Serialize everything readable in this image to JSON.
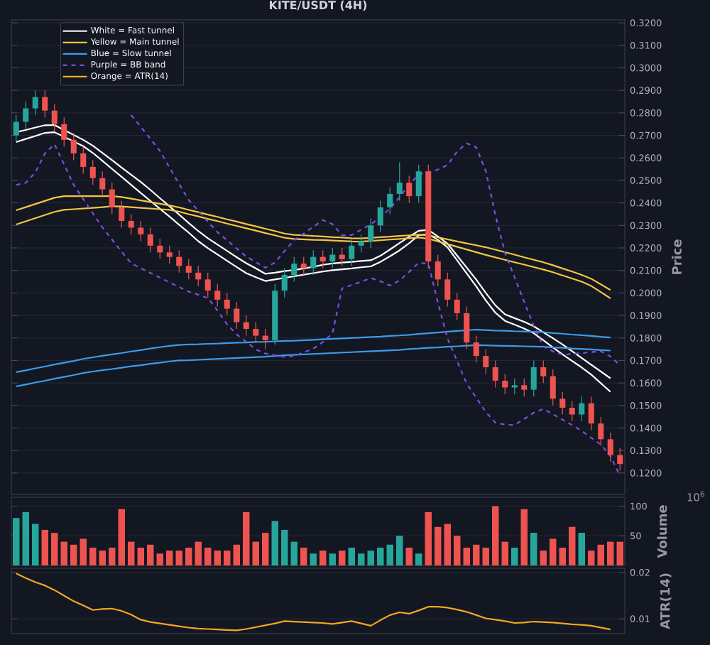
{
  "chart_data": [
    {
      "type": "candlestick",
      "title": "KITE/USDT (4H)",
      "ylabel": "Price",
      "grid": "y",
      "legend": "top left",
      "tick_labels": "y",
      "categories": [
        null,
        null,
        null,
        null,
        null,
        null,
        null,
        null,
        null,
        null,
        null,
        null,
        null,
        null,
        null,
        null,
        null,
        null,
        null,
        null,
        null,
        null,
        null,
        null,
        null,
        null,
        null,
        null,
        null,
        null,
        null,
        null,
        null,
        null,
        null,
        null,
        null,
        null,
        null,
        null,
        null,
        null,
        null,
        null,
        null,
        null,
        null,
        null,
        null,
        null,
        null,
        null,
        null,
        null,
        null,
        null,
        null,
        null,
        null,
        null,
        null,
        null,
        null,
        null
      ],
      "ylim": [
        0.1105,
        0.3213
      ],
      "yticks": [
        {
          "value": 0.12,
          "label": "0.1200"
        },
        {
          "value": 0.13,
          "label": "0.1300"
        },
        {
          "value": 0.14,
          "label": "0.1400"
        },
        {
          "value": 0.15,
          "label": "0.1500"
        },
        {
          "value": 0.16,
          "label": "0.1600"
        },
        {
          "value": 0.17,
          "label": "0.1700"
        },
        {
          "value": 0.18,
          "label": "0.1800"
        },
        {
          "value": 0.19,
          "label": "0.1900"
        },
        {
          "value": 0.2,
          "label": "0.2000"
        },
        {
          "value": 0.21,
          "label": "0.2100"
        },
        {
          "value": 0.22,
          "label": "0.2200"
        },
        {
          "value": 0.23,
          "label": "0.2300"
        },
        {
          "value": 0.24,
          "label": "0.2400"
        },
        {
          "value": 0.25,
          "label": "0.2500"
        },
        {
          "value": 0.26,
          "label": "0.2600"
        },
        {
          "value": 0.27,
          "label": "0.2700"
        },
        {
          "value": 0.28,
          "label": "0.2800"
        },
        {
          "value": 0.29,
          "label": "0.2900"
        },
        {
          "value": 0.3,
          "label": "0.3000"
        },
        {
          "value": 0.31,
          "label": "0.3100"
        },
        {
          "value": 0.32,
          "label": "0.3200"
        }
      ],
      "ohlc": [
        [
          0.27,
          0.279,
          0.267,
          0.276
        ],
        [
          0.276,
          0.285,
          0.273,
          0.282
        ],
        [
          0.282,
          0.29,
          0.279,
          0.287
        ],
        [
          0.287,
          0.29,
          0.278,
          0.281
        ],
        [
          0.281,
          0.284,
          0.272,
          0.275
        ],
        [
          0.275,
          0.278,
          0.265,
          0.268
        ],
        [
          0.268,
          0.271,
          0.259,
          0.262
        ],
        [
          0.262,
          0.265,
          0.253,
          0.256
        ],
        [
          0.256,
          0.259,
          0.248,
          0.251
        ],
        [
          0.251,
          0.254,
          0.243,
          0.246
        ],
        [
          0.246,
          0.249,
          0.235,
          0.238
        ],
        [
          0.238,
          0.241,
          0.229,
          0.232
        ],
        [
          0.232,
          0.235,
          0.226,
          0.229
        ],
        [
          0.229,
          0.232,
          0.223,
          0.226
        ],
        [
          0.226,
          0.229,
          0.218,
          0.221
        ],
        [
          0.221,
          0.224,
          0.215,
          0.218
        ],
        [
          0.218,
          0.221,
          0.213,
          0.216
        ],
        [
          0.216,
          0.219,
          0.209,
          0.212
        ],
        [
          0.212,
          0.215,
          0.206,
          0.209
        ],
        [
          0.209,
          0.212,
          0.203,
          0.206
        ],
        [
          0.206,
          0.209,
          0.198,
          0.201
        ],
        [
          0.201,
          0.204,
          0.194,
          0.197
        ],
        [
          0.197,
          0.2,
          0.19,
          0.193
        ],
        [
          0.193,
          0.196,
          0.184,
          0.187
        ],
        [
          0.187,
          0.19,
          0.181,
          0.184
        ],
        [
          0.184,
          0.187,
          0.178,
          0.181
        ],
        [
          0.181,
          0.184,
          0.175,
          0.179
        ],
        [
          0.179,
          0.204,
          0.177,
          0.201
        ],
        [
          0.201,
          0.211,
          0.198,
          0.208
        ],
        [
          0.208,
          0.216,
          0.205,
          0.213
        ],
        [
          0.213,
          0.216,
          0.208,
          0.211
        ],
        [
          0.211,
          0.219,
          0.208,
          0.216
        ],
        [
          0.216,
          0.219,
          0.211,
          0.214
        ],
        [
          0.214,
          0.22,
          0.211,
          0.217
        ],
        [
          0.217,
          0.22,
          0.212,
          0.215
        ],
        [
          0.215,
          0.224,
          0.212,
          0.221
        ],
        [
          0.221,
          0.226,
          0.218,
          0.223
        ],
        [
          0.223,
          0.233,
          0.22,
          0.23
        ],
        [
          0.23,
          0.241,
          0.227,
          0.238
        ],
        [
          0.238,
          0.247,
          0.235,
          0.244
        ],
        [
          0.244,
          0.258,
          0.241,
          0.249
        ],
        [
          0.249,
          0.252,
          0.24,
          0.243
        ],
        [
          0.243,
          0.257,
          0.24,
          0.254
        ],
        [
          0.254,
          0.257,
          0.211,
          0.214
        ],
        [
          0.214,
          0.217,
          0.203,
          0.206
        ],
        [
          0.206,
          0.209,
          0.194,
          0.197
        ],
        [
          0.197,
          0.2,
          0.188,
          0.191
        ],
        [
          0.191,
          0.194,
          0.175,
          0.178
        ],
        [
          0.178,
          0.181,
          0.169,
          0.172
        ],
        [
          0.172,
          0.175,
          0.164,
          0.167
        ],
        [
          0.167,
          0.17,
          0.158,
          0.161
        ],
        [
          0.161,
          0.164,
          0.155,
          0.158
        ],
        [
          0.158,
          0.162,
          0.155,
          0.159
        ],
        [
          0.159,
          0.162,
          0.154,
          0.157
        ],
        [
          0.157,
          0.17,
          0.154,
          0.167
        ],
        [
          0.167,
          0.17,
          0.16,
          0.163
        ],
        [
          0.163,
          0.166,
          0.15,
          0.153
        ],
        [
          0.153,
          0.156,
          0.146,
          0.149
        ],
        [
          0.149,
          0.152,
          0.143,
          0.146
        ],
        [
          0.146,
          0.154,
          0.143,
          0.151
        ],
        [
          0.151,
          0.154,
          0.139,
          0.142
        ],
        [
          0.142,
          0.145,
          0.132,
          0.135
        ],
        [
          0.135,
          0.138,
          0.125,
          0.128
        ],
        [
          0.128,
          0.131,
          0.121,
          0.124
        ]
      ],
      "colors": [
        "#26a69a",
        "#26a69a",
        "#26a69a",
        "#ef5350",
        "#ef5350",
        "#ef5350",
        "#ef5350",
        "#ef5350",
        "#ef5350",
        "#ef5350",
        "#ef5350",
        "#ef5350",
        "#ef5350",
        "#ef5350",
        "#ef5350",
        "#ef5350",
        "#ef5350",
        "#ef5350",
        "#ef5350",
        "#ef5350",
        "#ef5350",
        "#ef5350",
        "#ef5350",
        "#ef5350",
        "#ef5350",
        "#ef5350",
        "#ef5350",
        "#26a69a",
        "#26a69a",
        "#26a69a",
        "#ef5350",
        "#26a69a",
        "#ef5350",
        "#26a69a",
        "#ef5350",
        "#26a69a",
        "#26a69a",
        "#26a69a",
        "#26a69a",
        "#26a69a",
        "#26a69a",
        "#ef5350",
        "#26a69a",
        "#ef5350",
        "#ef5350",
        "#ef5350",
        "#ef5350",
        "#ef5350",
        "#ef5350",
        "#ef5350",
        "#ef5350",
        "#ef5350",
        "#26a69a",
        "#ef5350",
        "#26a69a",
        "#ef5350",
        "#ef5350",
        "#ef5350",
        "#ef5350",
        "#26a69a",
        "#ef5350",
        "#ef5350",
        "#ef5350",
        "#ef5350"
      ],
      "series": [
        {
          "name": "White = Fast tunnel",
          "type": "line",
          "color": "#ffffff",
          "values": [
            0.2714,
            0.2724,
            0.2735,
            0.2745,
            0.2746,
            0.2724,
            0.2702,
            0.268,
            0.2654,
            0.2622,
            0.259,
            0.2557,
            0.2525,
            0.2493,
            0.2458,
            0.2421,
            0.2385,
            0.2348,
            0.2311,
            0.2275,
            0.2243,
            0.2215,
            0.2187,
            0.2159,
            0.2132,
            0.2109,
            0.2085,
            0.209,
            0.2097,
            0.2102,
            0.2109,
            0.2116,
            0.2125,
            0.2131,
            0.2135,
            0.2138,
            0.2142,
            0.2145,
            0.2165,
            0.2193,
            0.2222,
            0.225,
            0.2276,
            0.228,
            0.2251,
            0.2219,
            0.2166,
            0.2113,
            0.2059,
            0.2,
            0.1945,
            0.1905,
            0.1888,
            0.1872,
            0.1852,
            0.1825,
            0.1799,
            0.1771,
            0.1741,
            0.1711,
            0.1681,
            0.1651,
            0.1621,
            null
          ]
        },
        {
          "type": "line",
          "color": "#ffffff",
          "values": [
            0.267,
            0.2684,
            0.2697,
            0.2711,
            0.2714,
            0.2694,
            0.2673,
            0.2652,
            0.2622,
            0.2587,
            0.2551,
            0.2516,
            0.248,
            0.2444,
            0.2409,
            0.2374,
            0.2339,
            0.2303,
            0.2268,
            0.223,
            0.2199,
            0.2171,
            0.2143,
            0.2115,
            0.2088,
            0.207,
            0.2053,
            0.206,
            0.2067,
            0.2074,
            0.2081,
            0.2088,
            0.2095,
            0.2101,
            0.2105,
            0.2109,
            0.2114,
            0.2118,
            0.2138,
            0.2163,
            0.2189,
            0.2221,
            0.2256,
            0.2261,
            0.2236,
            0.2203,
            0.2145,
            0.2087,
            0.2029,
            0.1967,
            0.1912,
            0.1876,
            0.1859,
            0.1842,
            0.1821,
            0.179,
            0.1758,
            0.1727,
            0.1698,
            0.1669,
            0.1637,
            0.1599,
            0.1561,
            null
          ]
        },
        {
          "name": "Yellow = Main tunnel",
          "type": "line",
          "color": "#f5c542",
          "values": [
            0.2367,
            0.2381,
            0.2395,
            0.2409,
            0.2423,
            0.243,
            0.243,
            0.243,
            0.243,
            0.243,
            0.243,
            0.2426,
            0.2419,
            0.2411,
            0.2404,
            0.2396,
            0.2389,
            0.238,
            0.2369,
            0.2359,
            0.2348,
            0.2338,
            0.2327,
            0.2317,
            0.2306,
            0.2296,
            0.2285,
            0.2275,
            0.2264,
            0.2258,
            0.2256,
            0.2253,
            0.2251,
            0.2248,
            0.2246,
            0.2243,
            0.2242,
            0.2245,
            0.2248,
            0.225,
            0.2253,
            0.2256,
            0.2259,
            0.2256,
            0.2247,
            0.2238,
            0.2229,
            0.222,
            0.2212,
            0.2203,
            0.2192,
            0.2181,
            0.217,
            0.2158,
            0.2147,
            0.2136,
            0.2123,
            0.2109,
            0.2095,
            0.208,
            0.2063,
            0.2038,
            0.2013,
            null
          ]
        },
        {
          "type": "line",
          "color": "#f5c542",
          "values": [
            0.2304,
            0.2318,
            0.2332,
            0.2346,
            0.236,
            0.2369,
            0.2372,
            0.2375,
            0.2378,
            0.2381,
            0.2385,
            0.2384,
            0.2381,
            0.2378,
            0.2375,
            0.2372,
            0.2369,
            0.2361,
            0.235,
            0.234,
            0.2329,
            0.2319,
            0.2308,
            0.2298,
            0.2287,
            0.2277,
            0.2266,
            0.2256,
            0.2245,
            0.224,
            0.2238,
            0.2236,
            0.2235,
            0.2233,
            0.2231,
            0.2229,
            0.2228,
            0.2231,
            0.2234,
            0.2237,
            0.224,
            0.2243,
            0.2246,
            0.2241,
            0.2229,
            0.2217,
            0.2205,
            0.2193,
            0.2181,
            0.2169,
            0.2158,
            0.2147,
            0.2136,
            0.2126,
            0.2115,
            0.2104,
            0.2092,
            0.2078,
            0.2064,
            0.205,
            0.2031,
            0.2004,
            0.1976,
            null
          ]
        },
        {
          "name": "Blue = Slow tunnel",
          "type": "line",
          "color": "#3d9be9",
          "values": [
            0.1648,
            0.1656,
            0.1665,
            0.1673,
            0.1682,
            0.169,
            0.1698,
            0.1707,
            0.1714,
            0.1721,
            0.1727,
            0.1733,
            0.174,
            0.1746,
            0.1753,
            0.1759,
            0.1765,
            0.1769,
            0.1771,
            0.1772,
            0.1774,
            0.1775,
            0.1777,
            0.1779,
            0.178,
            0.1782,
            0.1783,
            0.1785,
            0.1787,
            0.1788,
            0.179,
            0.1792,
            0.1794,
            0.1796,
            0.1798,
            0.18,
            0.1802,
            0.1804,
            0.1806,
            0.1809,
            0.1811,
            0.1814,
            0.1818,
            0.1821,
            0.1824,
            0.1828,
            0.1831,
            0.1834,
            0.1837,
            0.1835,
            0.1833,
            0.1832,
            0.183,
            0.1829,
            0.1827,
            0.1826,
            0.1822,
            0.1819,
            0.1815,
            0.1812,
            0.1809,
            0.1805,
            0.1802,
            null
          ]
        },
        {
          "type": "line",
          "color": "#3d9be9",
          "values": [
            0.1585,
            0.1593,
            0.1602,
            0.161,
            0.1619,
            0.1627,
            0.1635,
            0.1644,
            0.1651,
            0.1657,
            0.1662,
            0.1668,
            0.1674,
            0.1679,
            0.1685,
            0.169,
            0.1696,
            0.17,
            0.1701,
            0.1703,
            0.1705,
            0.1707,
            0.1709,
            0.1711,
            0.1713,
            0.1715,
            0.1717,
            0.172,
            0.1723,
            0.1725,
            0.1727,
            0.1729,
            0.1731,
            0.1733,
            0.1735,
            0.1737,
            0.1739,
            0.1741,
            0.1743,
            0.1745,
            0.1747,
            0.1751,
            0.1753,
            0.1756,
            0.1758,
            0.1761,
            0.1763,
            0.1766,
            0.1768,
            0.1767,
            0.1766,
            0.1765,
            0.1764,
            0.1763,
            0.1762,
            0.1761,
            0.1758,
            0.1756,
            0.1753,
            0.1751,
            0.1749,
            0.1746,
            0.1744,
            null
          ]
        },
        {
          "name": "Purple = BB band",
          "type": "line",
          "color": "#7b4fe0",
          "line_style": "dashed",
          "values": [
            null,
            null,
            null,
            null,
            null,
            null,
            null,
            null,
            null,
            null,
            null,
            null,
            0.279,
            0.2738,
            0.2685,
            0.2631,
            0.2557,
            0.2484,
            0.2413,
            0.2365,
            0.2317,
            0.227,
            0.2234,
            0.2198,
            0.2162,
            0.2137,
            0.2112,
            0.2135,
            0.2186,
            0.2234,
            0.2264,
            0.2294,
            0.2324,
            0.2306,
            0.2256,
            0.2257,
            0.2281,
            0.2304,
            0.2337,
            0.2375,
            0.2425,
            0.2481,
            0.2527,
            0.2537,
            0.2548,
            0.2568,
            0.2628,
            0.2665,
            0.2647,
            0.2541,
            0.2346,
            0.2178,
            0.207,
            0.1961,
            0.1854,
            0.1763,
            0.174,
            0.1725,
            0.1729,
            0.1733,
            0.1737,
            0.1741,
            0.1718,
            0.1679
          ]
        },
        {
          "type": "line",
          "color": "#7b4fe0",
          "line_style": "dashed",
          "values": [
            0.248,
            0.2489,
            0.2535,
            0.262,
            0.2661,
            0.2571,
            0.248,
            0.2417,
            0.2354,
            0.2291,
            0.2237,
            0.2183,
            0.2132,
            0.211,
            0.2089,
            0.2068,
            0.2047,
            0.2026,
            0.2006,
            0.1992,
            0.1977,
            0.1922,
            0.1861,
            0.1816,
            0.1783,
            0.1749,
            0.1731,
            0.1723,
            0.1716,
            0.172,
            0.1736,
            0.1752,
            0.1782,
            0.182,
            0.202,
            0.2035,
            0.205,
            0.2066,
            0.2052,
            0.2033,
            0.2055,
            0.2094,
            0.2134,
            0.213,
            0.1957,
            0.1798,
            0.1698,
            0.1597,
            0.1535,
            0.1471,
            0.1424,
            0.1415,
            0.1413,
            0.144,
            0.1468,
            0.1485,
            0.1461,
            0.1437,
            0.1413,
            0.1387,
            0.1356,
            0.1327,
            0.1275,
            0.1187
          ]
        }
      ]
    },
    {
      "type": "bar",
      "ylabel": "Volume",
      "grid": "y",
      "tick_labels": "y",
      "annotations": [
        "10$^{6}$"
      ],
      "categories": [
        null,
        null,
        null,
        null,
        null,
        null,
        null,
        null,
        null,
        null,
        null,
        null,
        null,
        null,
        null,
        null,
        null,
        null,
        null,
        null,
        null,
        null,
        null,
        null,
        null,
        null,
        null,
        null,
        null,
        null,
        null,
        null,
        null,
        null,
        null,
        null,
        null,
        null,
        null,
        null,
        null,
        null,
        null,
        null,
        null,
        null,
        null,
        null,
        null,
        null,
        null,
        null,
        null,
        null,
        null,
        null,
        null,
        null,
        null,
        null,
        null,
        null,
        null,
        null
      ],
      "ylim": [
        0,
        115
      ],
      "yticks": [
        50,
        100
      ],
      "values": [
        80,
        90,
        70,
        60,
        55,
        40,
        35,
        45,
        30,
        25,
        30,
        95,
        40,
        30,
        35,
        20,
        25,
        25,
        30,
        40,
        30,
        25,
        25,
        35,
        90,
        40,
        55,
        75,
        60,
        40,
        30,
        20,
        25,
        20,
        25,
        30,
        20,
        25,
        30,
        35,
        50,
        30,
        20,
        90,
        65,
        70,
        50,
        30,
        35,
        30,
        100,
        40,
        30,
        95,
        55,
        25,
        45,
        30,
        65,
        55,
        25,
        35,
        40,
        40
      ],
      "colors": [
        "#26a69a",
        "#26a69a",
        "#26a69a",
        "#ef5350",
        "#ef5350",
        "#ef5350",
        "#ef5350",
        "#ef5350",
        "#ef5350",
        "#ef5350",
        "#ef5350",
        "#ef5350",
        "#ef5350",
        "#ef5350",
        "#ef5350",
        "#ef5350",
        "#ef5350",
        "#ef5350",
        "#ef5350",
        "#ef5350",
        "#ef5350",
        "#ef5350",
        "#ef5350",
        "#ef5350",
        "#ef5350",
        "#ef5350",
        "#ef5350",
        "#26a69a",
        "#26a69a",
        "#26a69a",
        "#ef5350",
        "#26a69a",
        "#ef5350",
        "#26a69a",
        "#ef5350",
        "#26a69a",
        "#26a69a",
        "#26a69a",
        "#26a69a",
        "#26a69a",
        "#26a69a",
        "#ef5350",
        "#26a69a",
        "#ef5350",
        "#ef5350",
        "#ef5350",
        "#ef5350",
        "#ef5350",
        "#ef5350",
        "#ef5350",
        "#ef5350",
        "#ef5350",
        "#26a69a",
        "#ef5350",
        "#26a69a",
        "#ef5350",
        "#ef5350",
        "#ef5350",
        "#ef5350",
        "#26a69a",
        "#ef5350",
        "#ef5350",
        "#ef5350",
        "#ef5350"
      ]
    },
    {
      "type": "line",
      "ylabel": "ATR(14)",
      "grid": "y",
      "tick_labels": "y",
      "categories": [
        null,
        null,
        null,
        null,
        null,
        null,
        null,
        null,
        null,
        null,
        null,
        null,
        null,
        null,
        null,
        null,
        null,
        null,
        null,
        null,
        null,
        null,
        null,
        null,
        null,
        null,
        null,
        null,
        null,
        null,
        null,
        null,
        null,
        null,
        null,
        null,
        null,
        null,
        null,
        null,
        null,
        null,
        null,
        null,
        null,
        null,
        null,
        null,
        null,
        null,
        null,
        null,
        null,
        null,
        null,
        null,
        null,
        null,
        null,
        null,
        null,
        null,
        null,
        null
      ],
      "ylim": [
        0.0068,
        0.0209
      ],
      "yticks": [
        0.01,
        0.02
      ],
      "series": [
        {
          "name": "Orange = ATR(14)",
          "color": "#f5a623",
          "values": [
            0.0198,
            0.0188,
            0.0179,
            0.0172,
            0.0162,
            0.015,
            0.0138,
            0.0129,
            0.0119,
            0.0121,
            0.0122,
            0.0117,
            0.0109,
            0.0098,
            0.0093,
            0.009,
            0.0087,
            0.0084,
            0.0081,
            0.0079,
            0.0078,
            0.0077,
            0.0076,
            0.0075,
            0.0078,
            0.0082,
            0.0086,
            0.009,
            0.0095,
            0.0094,
            0.0093,
            0.0092,
            0.0091,
            0.0089,
            0.0092,
            0.0095,
            0.009,
            0.0085,
            0.0097,
            0.0108,
            0.0114,
            0.0111,
            0.0118,
            0.0126,
            0.0126,
            0.0124,
            0.012,
            0.0115,
            0.0108,
            0.0101,
            0.0098,
            0.0095,
            0.0091,
            0.0092,
            0.0094,
            0.0093,
            0.0092,
            0.009,
            0.0088,
            0.0087,
            0.0085,
            0.0081,
            0.0077,
            null
          ]
        }
      ]
    }
  ]
}
